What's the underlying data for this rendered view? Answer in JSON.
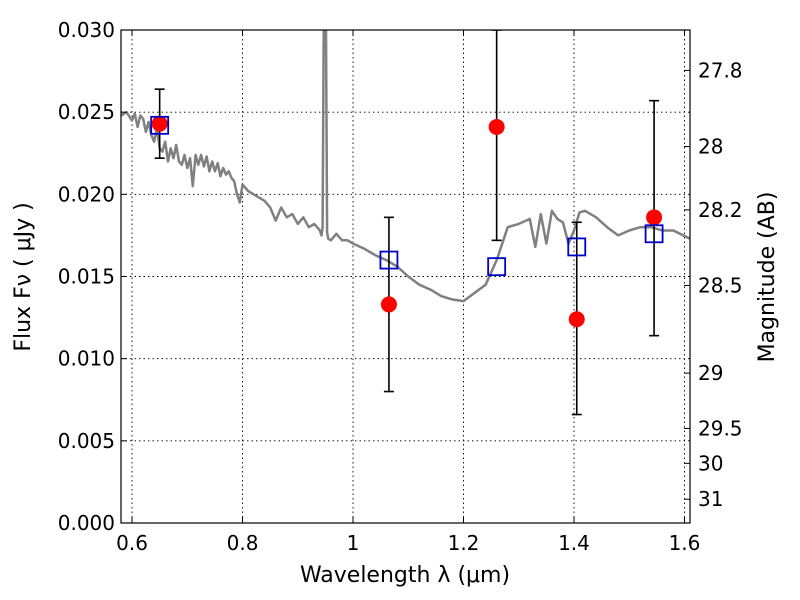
{
  "chart_data": {
    "type": "scatter",
    "xlabel": "Wavelength  λ (μm)",
    "ylabel": "Flux  Fν  ( μJy )",
    "ylabel_right": "Magnitude (AB)",
    "xlim": [
      0.58,
      1.61
    ],
    "ylim": [
      0.0,
      0.03
    ],
    "grid": true,
    "x_ticks": [
      "0.6",
      "0.8",
      "1",
      "1.2",
      "1.4",
      "1.6"
    ],
    "y_ticks": [
      "0.000",
      "0.005",
      "0.010",
      "0.015",
      "0.020",
      "0.025",
      "0.030"
    ],
    "mag_ticks": [
      {
        "label": "27.8",
        "value": 27.8
      },
      {
        "label": "28",
        "value": 28.0
      },
      {
        "label": "28.2",
        "value": 28.2
      },
      {
        "label": "28.5",
        "value": 28.5
      },
      {
        "label": "29",
        "value": 29.0
      },
      {
        "label": "29.5",
        "value": 29.5
      },
      {
        "label": "30",
        "value": 30.0
      },
      {
        "label": "31",
        "value": 31.0
      }
    ],
    "colors": {
      "model": "#808080",
      "observed": "#ff0000",
      "model_phot": "#0000cc",
      "errorbar": "#000000"
    },
    "model_spectrum": {
      "x": [
        0.58,
        0.59,
        0.6,
        0.605,
        0.61,
        0.615,
        0.62,
        0.625,
        0.63,
        0.635,
        0.64,
        0.645,
        0.65,
        0.655,
        0.66,
        0.665,
        0.67,
        0.675,
        0.68,
        0.685,
        0.69,
        0.695,
        0.7,
        0.705,
        0.71,
        0.715,
        0.72,
        0.725,
        0.73,
        0.735,
        0.74,
        0.745,
        0.75,
        0.755,
        0.76,
        0.765,
        0.77,
        0.775,
        0.78,
        0.785,
        0.79,
        0.795,
        0.8,
        0.81,
        0.82,
        0.83,
        0.84,
        0.85,
        0.86,
        0.87,
        0.88,
        0.89,
        0.9,
        0.91,
        0.92,
        0.93,
        0.94,
        0.943,
        0.945,
        0.947,
        0.949,
        0.951,
        0.953,
        0.955,
        0.96,
        0.97,
        0.98,
        0.99,
        1.0,
        1.02,
        1.04,
        1.06,
        1.08,
        1.1,
        1.12,
        1.14,
        1.16,
        1.18,
        1.2,
        1.22,
        1.24,
        1.26,
        1.28,
        1.3,
        1.32,
        1.33,
        1.34,
        1.35,
        1.36,
        1.37,
        1.38,
        1.39,
        1.4,
        1.41,
        1.42,
        1.44,
        1.46,
        1.48,
        1.5,
        1.52,
        1.54,
        1.56,
        1.58,
        1.61
      ],
      "y": [
        0.0248,
        0.025,
        0.0245,
        0.0249,
        0.0241,
        0.0248,
        0.0246,
        0.0238,
        0.0244,
        0.0236,
        0.0232,
        0.024,
        0.0228,
        0.0226,
        0.0232,
        0.022,
        0.0228,
        0.0222,
        0.023,
        0.022,
        0.0218,
        0.0224,
        0.0216,
        0.0222,
        0.0205,
        0.0224,
        0.0218,
        0.0224,
        0.0217,
        0.0223,
        0.0214,
        0.022,
        0.0214,
        0.0219,
        0.0211,
        0.0216,
        0.0212,
        0.0214,
        0.021,
        0.0208,
        0.02,
        0.0195,
        0.0206,
        0.0202,
        0.02,
        0.0198,
        0.0196,
        0.0192,
        0.0184,
        0.0192,
        0.0186,
        0.0188,
        0.0182,
        0.0186,
        0.018,
        0.0182,
        0.0178,
        0.0175,
        0.018,
        0.03,
        0.03,
        0.03,
        0.0177,
        0.0173,
        0.0172,
        0.0176,
        0.0172,
        0.0172,
        0.017,
        0.0167,
        0.0163,
        0.016,
        0.0156,
        0.015,
        0.0145,
        0.0142,
        0.0138,
        0.0136,
        0.0135,
        0.014,
        0.0145,
        0.016,
        0.018,
        0.0182,
        0.0185,
        0.0168,
        0.0188,
        0.017,
        0.019,
        0.0185,
        0.0183,
        0.017,
        0.0178,
        0.0189,
        0.019,
        0.0186,
        0.018,
        0.0175,
        0.0178,
        0.018,
        0.018,
        0.0178,
        0.0178,
        0.0173
      ]
    },
    "model_photometry": {
      "x": [
        0.65,
        1.065,
        1.26,
        1.405,
        1.545
      ],
      "y": [
        0.0242,
        0.016,
        0.0156,
        0.0168,
        0.0176
      ]
    },
    "observed": {
      "x": [
        0.65,
        1.065,
        1.26,
        1.405,
        1.545
      ],
      "y": [
        0.0243,
        0.0133,
        0.0241,
        0.0124,
        0.0186
      ],
      "err_low": [
        0.0222,
        0.008,
        0.0172,
        0.0066,
        0.0114
      ],
      "err_high": [
        0.0264,
        0.0186,
        0.03,
        0.0183,
        0.0257
      ]
    }
  }
}
